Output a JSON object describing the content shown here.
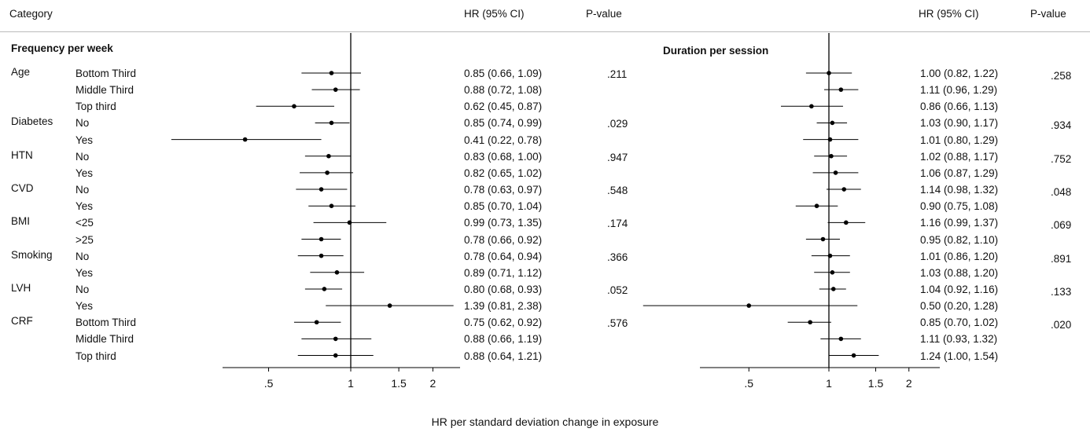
{
  "header": {
    "category": "Category",
    "hr_left": "HR (95% CI)",
    "p_left": "P-value",
    "hr_right": "HR (95% CI)",
    "p_right": "P-value"
  },
  "footer": "HR per standard deviation change in exposure",
  "chart_data": [
    {
      "type": "forest",
      "title": "Frequency per week",
      "xlabel": "HR per standard deviation change in exposure",
      "x_scale": "log",
      "x_ticks": [
        0.5,
        1,
        1.5,
        2
      ],
      "x_tick_labels": [
        ".5",
        "1",
        "1.5",
        "2"
      ],
      "reference_line": 1,
      "rows": [
        {
          "group": "Age",
          "label": "Bottom Third",
          "hr": 0.85,
          "lo": 0.66,
          "hi": 1.09,
          "text": "0.85 (0.66, 1.09)",
          "p": ".211"
        },
        {
          "group": "",
          "label": "Middle Third",
          "hr": 0.88,
          "lo": 0.72,
          "hi": 1.08,
          "text": "0.88 (0.72, 1.08)",
          "p": ""
        },
        {
          "group": "",
          "label": "Top third",
          "hr": 0.62,
          "lo": 0.45,
          "hi": 0.87,
          "text": "0.62 (0.45, 0.87)",
          "p": ""
        },
        {
          "group": "Diabetes",
          "label": "No",
          "hr": 0.85,
          "lo": 0.74,
          "hi": 0.99,
          "text": "0.85 (0.74, 0.99)",
          "p": ".029"
        },
        {
          "group": "",
          "label": "Yes",
          "hr": 0.41,
          "lo": 0.22,
          "hi": 0.78,
          "text": "0.41 (0.22, 0.78)",
          "p": "",
          "truncated_low": true
        },
        {
          "group": "HTN",
          "label": "No",
          "hr": 0.83,
          "lo": 0.68,
          "hi": 1.0,
          "text": "0.83 (0.68, 1.00)",
          "p": ".947"
        },
        {
          "group": "",
          "label": "Yes",
          "hr": 0.82,
          "lo": 0.65,
          "hi": 1.02,
          "text": "0.82 (0.65, 1.02)",
          "p": ""
        },
        {
          "group": "CVD",
          "label": "No",
          "hr": 0.78,
          "lo": 0.63,
          "hi": 0.97,
          "text": "0.78 (0.63, 0.97)",
          "p": ".548"
        },
        {
          "group": "",
          "label": "Yes",
          "hr": 0.85,
          "lo": 0.7,
          "hi": 1.04,
          "text": "0.85 (0.70, 1.04)",
          "p": ""
        },
        {
          "group": "BMI",
          "label": "<25",
          "hr": 0.99,
          "lo": 0.73,
          "hi": 1.35,
          "text": "0.99 (0.73, 1.35)",
          "p": ".174"
        },
        {
          "group": "",
          "label": ">25",
          "hr": 0.78,
          "lo": 0.66,
          "hi": 0.92,
          "text": "0.78 (0.66, 0.92)",
          "p": ""
        },
        {
          "group": "Smoking",
          "label": "No",
          "hr": 0.78,
          "lo": 0.64,
          "hi": 0.94,
          "text": "0.78 (0.64, 0.94)",
          "p": ".366"
        },
        {
          "group": "",
          "label": "Yes",
          "hr": 0.89,
          "lo": 0.71,
          "hi": 1.12,
          "text": "0.89 (0.71, 1.12)",
          "p": ""
        },
        {
          "group": "LVH",
          "label": "No",
          "hr": 0.8,
          "lo": 0.68,
          "hi": 0.93,
          "text": "0.80 (0.68, 0.93)",
          "p": ".052"
        },
        {
          "group": "",
          "label": "Yes",
          "hr": 1.39,
          "lo": 0.81,
          "hi": 2.38,
          "text": "1.39 (0.81, 2.38)",
          "p": ""
        },
        {
          "group": "CRF",
          "label": "Bottom Third",
          "hr": 0.75,
          "lo": 0.62,
          "hi": 0.92,
          "text": "0.75 (0.62, 0.92)",
          "p": ".576"
        },
        {
          "group": "",
          "label": "Middle Third",
          "hr": 0.88,
          "lo": 0.66,
          "hi": 1.19,
          "text": "0.88 (0.66, 1.19)",
          "p": ""
        },
        {
          "group": "",
          "label": "Top third",
          "hr": 0.88,
          "lo": 0.64,
          "hi": 1.21,
          "text": "0.88 (0.64, 1.21)",
          "p": ""
        }
      ]
    },
    {
      "type": "forest",
      "title": "Duration per session",
      "xlabel": "HR per standard deviation change in exposure",
      "x_scale": "log",
      "x_ticks": [
        0.5,
        1,
        1.5,
        2
      ],
      "x_tick_labels": [
        ".5",
        "1",
        "1.5",
        "2"
      ],
      "reference_line": 1,
      "rows": [
        {
          "hr": 1.0,
          "lo": 0.82,
          "hi": 1.22,
          "text": "1.00 (0.82, 1.22)",
          "p": ".258"
        },
        {
          "hr": 1.11,
          "lo": 0.96,
          "hi": 1.29,
          "text": "1.11 (0.96, 1.29)",
          "p": ""
        },
        {
          "hr": 0.86,
          "lo": 0.66,
          "hi": 1.13,
          "text": "0.86 (0.66, 1.13)",
          "p": ""
        },
        {
          "hr": 1.03,
          "lo": 0.9,
          "hi": 1.17,
          "text": "1.03 (0.90, 1.17)",
          "p": ".934"
        },
        {
          "hr": 1.01,
          "lo": 0.8,
          "hi": 1.29,
          "text": "1.01 (0.80, 1.29)",
          "p": ""
        },
        {
          "hr": 1.02,
          "lo": 0.88,
          "hi": 1.17,
          "text": "1.02 (0.88, 1.17)",
          "p": ".752"
        },
        {
          "hr": 1.06,
          "lo": 0.87,
          "hi": 1.29,
          "text": "1.06 (0.87, 1.29)",
          "p": ""
        },
        {
          "hr": 1.14,
          "lo": 0.98,
          "hi": 1.32,
          "text": "1.14 (0.98, 1.32)",
          "p": ".048"
        },
        {
          "hr": 0.9,
          "lo": 0.75,
          "hi": 1.08,
          "text": "0.90 (0.75, 1.08)",
          "p": ""
        },
        {
          "hr": 1.16,
          "lo": 0.99,
          "hi": 1.37,
          "text": "1.16 (0.99, 1.37)",
          "p": ".069"
        },
        {
          "hr": 0.95,
          "lo": 0.82,
          "hi": 1.1,
          "text": "0.95 (0.82, 1.10)",
          "p": ""
        },
        {
          "hr": 1.01,
          "lo": 0.86,
          "hi": 1.2,
          "text": "1.01 (0.86, 1.20)",
          "p": ".891"
        },
        {
          "hr": 1.03,
          "lo": 0.88,
          "hi": 1.2,
          "text": "1.03 (0.88, 1.20)",
          "p": ""
        },
        {
          "hr": 1.04,
          "lo": 0.92,
          "hi": 1.16,
          "text": "1.04 (0.92, 1.16)",
          "p": ".133"
        },
        {
          "hr": 0.5,
          "lo": 0.2,
          "hi": 1.28,
          "text": "0.50 (0.20, 1.28)",
          "p": "",
          "truncated_low": true
        },
        {
          "hr": 0.85,
          "lo": 0.7,
          "hi": 1.02,
          "text": "0.85 (0.70, 1.02)",
          "p": ".020"
        },
        {
          "hr": 1.11,
          "lo": 0.93,
          "hi": 1.32,
          "text": "1.11 (0.93, 1.32)",
          "p": ""
        },
        {
          "hr": 1.24,
          "lo": 1.0,
          "hi": 1.54,
          "text": "1.24 (1.00, 1.54)",
          "p": ""
        }
      ]
    }
  ]
}
